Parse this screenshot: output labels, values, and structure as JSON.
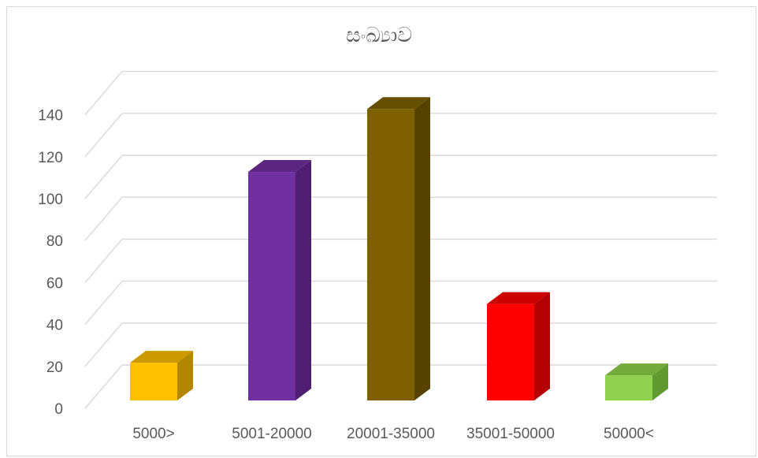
{
  "chart_data": {
    "type": "bar",
    "title": "සංඛ්‍යාව",
    "categories": [
      "5000>",
      "5001-20000",
      "20001-35000",
      "35001-50000",
      "50000<"
    ],
    "values": [
      18,
      109,
      139,
      46,
      12
    ],
    "colors": [
      "#FFC000",
      "#7030A0",
      "#7F6000",
      "#FF0000",
      "#92D050"
    ],
    "side_colors": [
      "#B38600",
      "#4E1F70",
      "#574200",
      "#B30000",
      "#629A32"
    ],
    "top_colors": [
      "#CC9A00",
      "#5A2680",
      "#665000",
      "#CC0000",
      "#74AB3C"
    ],
    "ylim": [
      0,
      140
    ],
    "yticks": [
      0,
      20,
      40,
      60,
      80,
      100,
      120,
      140
    ],
    "grid": true,
    "legend": "none",
    "xlabel": "",
    "ylabel": ""
  }
}
